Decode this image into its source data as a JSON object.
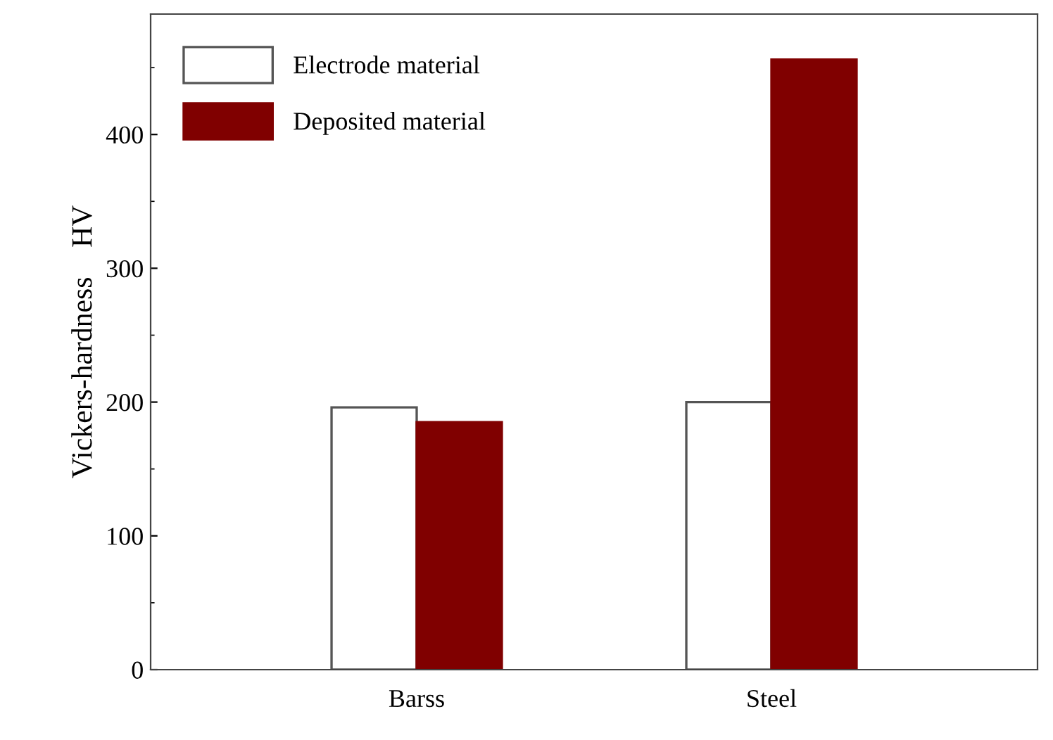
{
  "chart_data": {
    "type": "bar",
    "ylabel": "Vickers-hardness    HV",
    "categories": [
      "Barss",
      "Steel"
    ],
    "series": [
      {
        "name": "Electrode material",
        "color": "#ffffff",
        "values": [
          196,
          200
        ]
      },
      {
        "name": "Deposited material",
        "color": "#800000",
        "values": [
          185,
          456
        ]
      }
    ],
    "ylim": [
      0,
      490
    ],
    "yticks": [
      0,
      100,
      200,
      300,
      400
    ],
    "grid": false,
    "legend": "top left"
  }
}
